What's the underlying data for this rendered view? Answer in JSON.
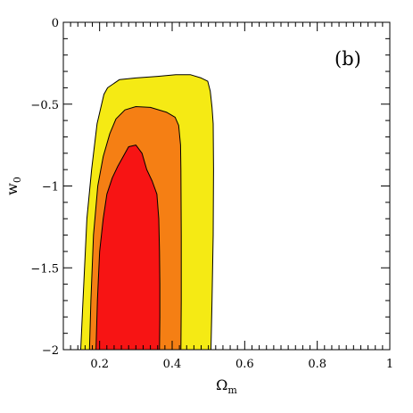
{
  "chart_data": {
    "type": "contour",
    "panel_label": "(b)",
    "xlabel": "Ωm",
    "xlabel_main": "Ω",
    "xlabel_sub": "m",
    "ylabel": "w0",
    "ylabel_main": "w",
    "ylabel_sub": "0",
    "xlim": [
      0.1,
      1.0
    ],
    "ylim": [
      -2,
      0
    ],
    "xticks": [
      0.2,
      0.4,
      0.6,
      0.8,
      1.0
    ],
    "xtick_labels": [
      "0.2",
      "0.4",
      "0.6",
      "0.8",
      "1"
    ],
    "yticks": [
      0,
      -0.5,
      -1,
      -1.5,
      -2
    ],
    "ytick_labels": [
      "0",
      "−0.5",
      "−1",
      "−1.5",
      "−2"
    ],
    "x_minor_step": 0.02,
    "y_minor_step": 0.1,
    "grid": false,
    "contours": [
      {
        "level": "outer",
        "color": "#f5ea14",
        "points": [
          [
            0.148,
            -2.0
          ],
          [
            0.153,
            -1.75
          ],
          [
            0.165,
            -1.2
          ],
          [
            0.178,
            -0.9
          ],
          [
            0.193,
            -0.62
          ],
          [
            0.212,
            -0.44
          ],
          [
            0.222,
            -0.4
          ],
          [
            0.255,
            -0.35
          ],
          [
            0.3,
            -0.34
          ],
          [
            0.36,
            -0.33
          ],
          [
            0.41,
            -0.32
          ],
          [
            0.45,
            -0.32
          ],
          [
            0.48,
            -0.34
          ],
          [
            0.498,
            -0.36
          ],
          [
            0.505,
            -0.42
          ],
          [
            0.51,
            -0.52
          ],
          [
            0.513,
            -0.62
          ],
          [
            0.514,
            -0.9
          ],
          [
            0.513,
            -1.3
          ],
          [
            0.51,
            -1.7
          ],
          [
            0.507,
            -2.0
          ]
        ]
      },
      {
        "level": "middle",
        "color": "#f57f14",
        "points": [
          [
            0.172,
            -2.0
          ],
          [
            0.176,
            -1.7
          ],
          [
            0.183,
            -1.3
          ],
          [
            0.195,
            -1.0
          ],
          [
            0.21,
            -0.82
          ],
          [
            0.228,
            -0.68
          ],
          [
            0.245,
            -0.59
          ],
          [
            0.27,
            -0.535
          ],
          [
            0.3,
            -0.515
          ],
          [
            0.34,
            -0.52
          ],
          [
            0.385,
            -0.55
          ],
          [
            0.408,
            -0.58
          ],
          [
            0.418,
            -0.63
          ],
          [
            0.423,
            -0.75
          ],
          [
            0.424,
            -0.9
          ],
          [
            0.425,
            -1.3
          ],
          [
            0.425,
            -1.7
          ],
          [
            0.424,
            -2.0
          ]
        ]
      },
      {
        "level": "inner",
        "color": "#f71414",
        "points": [
          [
            0.19,
            -2.0
          ],
          [
            0.194,
            -1.7
          ],
          [
            0.2,
            -1.4
          ],
          [
            0.21,
            -1.2
          ],
          [
            0.22,
            -1.05
          ],
          [
            0.235,
            -0.95
          ],
          [
            0.25,
            -0.88
          ],
          [
            0.265,
            -0.82
          ],
          [
            0.28,
            -0.76
          ],
          [
            0.3,
            -0.75
          ],
          [
            0.317,
            -0.8
          ],
          [
            0.33,
            -0.9
          ],
          [
            0.345,
            -0.97
          ],
          [
            0.358,
            -1.05
          ],
          [
            0.363,
            -1.2
          ],
          [
            0.365,
            -1.4
          ],
          [
            0.366,
            -1.6
          ],
          [
            0.366,
            -1.8
          ],
          [
            0.365,
            -2.0
          ]
        ]
      }
    ]
  }
}
